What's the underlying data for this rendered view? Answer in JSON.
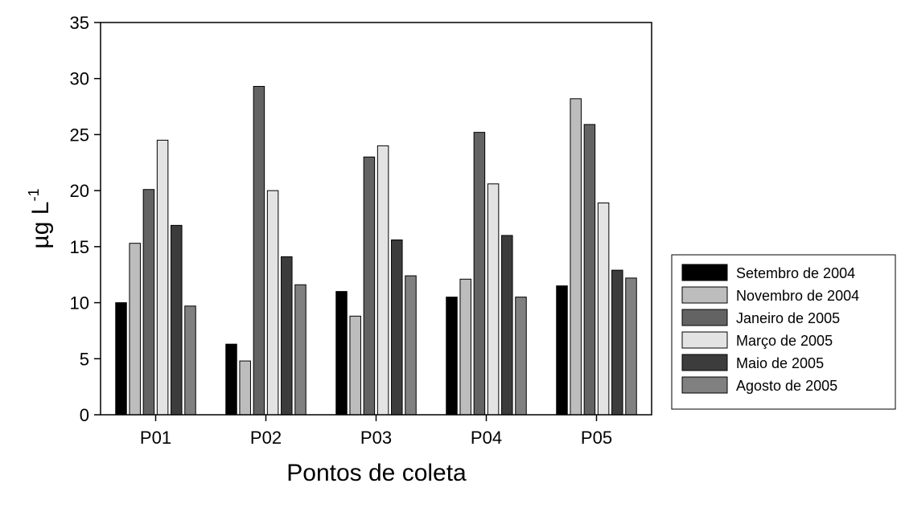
{
  "chart_data": {
    "type": "bar",
    "title": "",
    "xlabel": "Pontos de coleta",
    "ylabel_base": "µg L",
    "ylabel_superscript": "-1",
    "ylim": [
      0,
      35
    ],
    "yticks": [
      0,
      5,
      10,
      15,
      20,
      25,
      30,
      35
    ],
    "categories": [
      "P01",
      "P02",
      "P03",
      "P04",
      "P05"
    ],
    "legend_placement": "right",
    "grid": false,
    "series": [
      {
        "name": "Setembro de 2004",
        "color": "#000000",
        "values": [
          10.0,
          6.3,
          11.0,
          10.5,
          11.5
        ]
      },
      {
        "name": "Novembro de 2004",
        "color": "#bdbdbd",
        "values": [
          15.3,
          4.8,
          8.8,
          12.1,
          28.2
        ]
      },
      {
        "name": "Janeiro de 2005",
        "color": "#636363",
        "values": [
          20.1,
          29.3,
          23.0,
          25.2,
          25.9
        ]
      },
      {
        "name": "Março de 2005",
        "color": "#e3e3e3",
        "values": [
          24.5,
          20.0,
          24.0,
          20.6,
          18.9
        ]
      },
      {
        "name": "Maio de 2005",
        "color": "#3c3c3c",
        "values": [
          16.9,
          14.1,
          15.6,
          16.0,
          12.9
        ]
      },
      {
        "name": "Agosto de 2005",
        "color": "#808080",
        "values": [
          9.7,
          11.6,
          12.4,
          10.5,
          12.2
        ]
      }
    ]
  }
}
